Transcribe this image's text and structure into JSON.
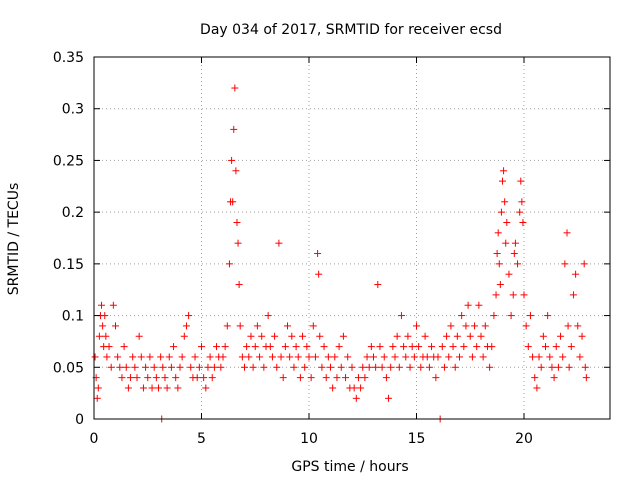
{
  "chart_data": {
    "type": "scatter",
    "title": "Day 034 of 2017, SRMTID for receiver ecsd",
    "xlabel": "GPS time / hours",
    "ylabel": "SRMTID / TECUs",
    "xlim": [
      0,
      24
    ],
    "ylim": [
      0,
      0.35
    ],
    "xticks": [
      0,
      5,
      10,
      15,
      20
    ],
    "xtick_labels": [
      "0",
      "5",
      "10",
      "15",
      "20"
    ],
    "yticks": [
      0,
      0.05,
      0.1,
      0.15,
      0.2,
      0.25,
      0.3,
      0.35
    ],
    "ytick_labels": [
      "0",
      "0.05",
      "0.1",
      "0.15",
      "0.2",
      "0.25",
      "0.3",
      "0.35"
    ],
    "grid": true,
    "marker": "+",
    "marker_color": "#ff0000",
    "series": [
      {
        "name": "SRMTID",
        "points": [
          [
            0.05,
            0.06
          ],
          [
            0.1,
            0.04
          ],
          [
            0.15,
            0.02
          ],
          [
            0.2,
            0.03
          ],
          [
            0.25,
            0.08
          ],
          [
            0.3,
            0.1
          ],
          [
            0.35,
            0.11
          ],
          [
            0.4,
            0.09
          ],
          [
            0.45,
            0.07
          ],
          [
            0.5,
            0.1
          ],
          [
            0.55,
            0.08
          ],
          [
            0.6,
            0.06
          ],
          [
            0.7,
            0.07
          ],
          [
            0.8,
            0.05
          ],
          [
            0.9,
            0.11
          ],
          [
            1.0,
            0.09
          ],
          [
            1.1,
            0.06
          ],
          [
            1.2,
            0.05
          ],
          [
            1.3,
            0.04
          ],
          [
            1.4,
            0.07
          ],
          [
            1.5,
            0.05
          ],
          [
            1.6,
            0.03
          ],
          [
            1.7,
            0.04
          ],
          [
            1.8,
            0.06
          ],
          [
            1.9,
            0.05
          ],
          [
            2.0,
            0.04
          ],
          [
            2.1,
            0.08
          ],
          [
            2.2,
            0.06
          ],
          [
            2.3,
            0.03
          ],
          [
            2.4,
            0.05
          ],
          [
            2.5,
            0.04
          ],
          [
            2.6,
            0.06
          ],
          [
            2.7,
            0.03
          ],
          [
            2.8,
            0.05
          ],
          [
            2.9,
            0.04
          ],
          [
            3.0,
            0.03
          ],
          [
            3.1,
            0.06
          ],
          [
            3.15,
            0.0
          ],
          [
            3.2,
            0.05
          ],
          [
            3.3,
            0.04
          ],
          [
            3.4,
            0.03
          ],
          [
            3.5,
            0.06
          ],
          [
            3.6,
            0.05
          ],
          [
            3.7,
            0.07
          ],
          [
            3.8,
            0.04
          ],
          [
            3.9,
            0.03
          ],
          [
            4.0,
            0.05
          ],
          [
            4.1,
            0.06
          ],
          [
            4.2,
            0.08
          ],
          [
            4.3,
            0.09
          ],
          [
            4.4,
            0.1
          ],
          [
            4.5,
            0.05
          ],
          [
            4.6,
            0.04
          ],
          [
            4.7,
            0.06
          ],
          [
            4.8,
            0.04
          ],
          [
            4.9,
            0.05
          ],
          [
            5.0,
            0.07
          ],
          [
            5.1,
            0.04
          ],
          [
            5.2,
            0.03
          ],
          [
            5.3,
            0.05
          ],
          [
            5.4,
            0.06
          ],
          [
            5.5,
            0.04
          ],
          [
            5.6,
            0.05
          ],
          [
            5.7,
            0.07
          ],
          [
            5.8,
            0.06
          ],
          [
            5.9,
            0.05
          ],
          [
            6.0,
            0.06
          ],
          [
            6.1,
            0.07
          ],
          [
            6.2,
            0.09
          ],
          [
            6.3,
            0.15
          ],
          [
            6.35,
            0.21
          ],
          [
            6.4,
            0.25
          ],
          [
            6.45,
            0.21
          ],
          [
            6.5,
            0.28
          ],
          [
            6.55,
            0.32
          ],
          [
            6.6,
            0.24
          ],
          [
            6.65,
            0.19
          ],
          [
            6.7,
            0.17
          ],
          [
            6.75,
            0.13
          ],
          [
            6.8,
            0.09
          ],
          [
            6.9,
            0.06
          ],
          [
            7.0,
            0.05
          ],
          [
            7.1,
            0.07
          ],
          [
            7.2,
            0.06
          ],
          [
            7.3,
            0.08
          ],
          [
            7.4,
            0.05
          ],
          [
            7.5,
            0.07
          ],
          [
            7.6,
            0.09
          ],
          [
            7.7,
            0.06
          ],
          [
            7.8,
            0.08
          ],
          [
            7.9,
            0.05
          ],
          [
            8.0,
            0.07
          ],
          [
            8.1,
            0.1
          ],
          [
            8.2,
            0.07
          ],
          [
            8.3,
            0.06
          ],
          [
            8.4,
            0.08
          ],
          [
            8.5,
            0.05
          ],
          [
            8.6,
            0.17
          ],
          [
            8.7,
            0.06
          ],
          [
            8.8,
            0.04
          ],
          [
            8.9,
            0.07
          ],
          [
            9.0,
            0.09
          ],
          [
            9.1,
            0.06
          ],
          [
            9.2,
            0.08
          ],
          [
            9.3,
            0.05
          ],
          [
            9.4,
            0.07
          ],
          [
            9.5,
            0.06
          ],
          [
            9.6,
            0.04
          ],
          [
            9.7,
            0.08
          ],
          [
            9.8,
            0.05
          ],
          [
            9.9,
            0.07
          ],
          [
            10.0,
            0.06
          ],
          [
            10.1,
            0.04
          ],
          [
            10.2,
            0.09
          ],
          [
            10.3,
            0.06
          ],
          [
            10.4,
            0.16
          ],
          [
            10.45,
            0.14
          ],
          [
            10.5,
            0.08
          ],
          [
            10.6,
            0.05
          ],
          [
            10.7,
            0.07
          ],
          [
            10.8,
            0.04
          ],
          [
            10.9,
            0.06
          ],
          [
            11.0,
            0.05
          ],
          [
            11.1,
            0.03
          ],
          [
            11.2,
            0.06
          ],
          [
            11.3,
            0.04
          ],
          [
            11.4,
            0.07
          ],
          [
            11.5,
            0.05
          ],
          [
            11.6,
            0.08
          ],
          [
            11.7,
            0.04
          ],
          [
            11.8,
            0.06
          ],
          [
            11.9,
            0.03
          ],
          [
            12.0,
            0.05
          ],
          [
            12.1,
            0.03
          ],
          [
            12.2,
            0.02
          ],
          [
            12.3,
            0.04
          ],
          [
            12.4,
            0.03
          ],
          [
            12.5,
            0.05
          ],
          [
            12.6,
            0.04
          ],
          [
            12.7,
            0.06
          ],
          [
            12.8,
            0.05
          ],
          [
            12.9,
            0.07
          ],
          [
            13.0,
            0.06
          ],
          [
            13.1,
            0.05
          ],
          [
            13.2,
            0.13
          ],
          [
            13.3,
            0.07
          ],
          [
            13.4,
            0.05
          ],
          [
            13.5,
            0.06
          ],
          [
            13.6,
            0.04
          ],
          [
            13.7,
            0.02
          ],
          [
            13.8,
            0.05
          ],
          [
            13.9,
            0.07
          ],
          [
            14.0,
            0.06
          ],
          [
            14.1,
            0.08
          ],
          [
            14.2,
            0.05
          ],
          [
            14.3,
            0.1
          ],
          [
            14.4,
            0.07
          ],
          [
            14.5,
            0.06
          ],
          [
            14.6,
            0.08
          ],
          [
            14.7,
            0.05
          ],
          [
            14.8,
            0.07
          ],
          [
            14.9,
            0.06
          ],
          [
            15.0,
            0.09
          ],
          [
            15.1,
            0.07
          ],
          [
            15.2,
            0.05
          ],
          [
            15.3,
            0.06
          ],
          [
            15.4,
            0.08
          ],
          [
            15.5,
            0.06
          ],
          [
            15.6,
            0.05
          ],
          [
            15.7,
            0.07
          ],
          [
            15.8,
            0.06
          ],
          [
            15.9,
            0.04
          ],
          [
            16.0,
            0.06
          ],
          [
            16.1,
            0.0
          ],
          [
            16.2,
            0.07
          ],
          [
            16.3,
            0.05
          ],
          [
            16.4,
            0.08
          ],
          [
            16.5,
            0.06
          ],
          [
            16.6,
            0.09
          ],
          [
            16.7,
            0.07
          ],
          [
            16.8,
            0.05
          ],
          [
            16.9,
            0.08
          ],
          [
            17.0,
            0.06
          ],
          [
            17.1,
            0.1
          ],
          [
            17.2,
            0.07
          ],
          [
            17.3,
            0.09
          ],
          [
            17.4,
            0.11
          ],
          [
            17.5,
            0.08
          ],
          [
            17.6,
            0.06
          ],
          [
            17.7,
            0.09
          ],
          [
            17.8,
            0.07
          ],
          [
            17.9,
            0.11
          ],
          [
            18.0,
            0.08
          ],
          [
            18.1,
            0.06
          ],
          [
            18.2,
            0.09
          ],
          [
            18.3,
            0.07
          ],
          [
            18.4,
            0.05
          ],
          [
            18.5,
            0.07
          ],
          [
            18.6,
            0.1
          ],
          [
            18.7,
            0.12
          ],
          [
            18.75,
            0.16
          ],
          [
            18.8,
            0.18
          ],
          [
            18.85,
            0.15
          ],
          [
            18.9,
            0.13
          ],
          [
            18.95,
            0.2
          ],
          [
            19.0,
            0.23
          ],
          [
            19.05,
            0.24
          ],
          [
            19.1,
            0.21
          ],
          [
            19.15,
            0.17
          ],
          [
            19.2,
            0.19
          ],
          [
            19.3,
            0.14
          ],
          [
            19.4,
            0.1
          ],
          [
            19.5,
            0.12
          ],
          [
            19.55,
            0.16
          ],
          [
            19.6,
            0.17
          ],
          [
            19.7,
            0.15
          ],
          [
            19.8,
            0.2
          ],
          [
            19.85,
            0.23
          ],
          [
            19.9,
            0.21
          ],
          [
            19.95,
            0.19
          ],
          [
            20.0,
            0.12
          ],
          [
            20.1,
            0.09
          ],
          [
            20.2,
            0.07
          ],
          [
            20.3,
            0.1
          ],
          [
            20.4,
            0.06
          ],
          [
            20.5,
            0.04
          ],
          [
            20.6,
            0.03
          ],
          [
            20.7,
            0.06
          ],
          [
            20.8,
            0.05
          ],
          [
            20.9,
            0.08
          ],
          [
            21.0,
            0.07
          ],
          [
            21.1,
            0.1
          ],
          [
            21.2,
            0.06
          ],
          [
            21.3,
            0.05
          ],
          [
            21.4,
            0.04
          ],
          [
            21.5,
            0.07
          ],
          [
            21.6,
            0.05
          ],
          [
            21.7,
            0.08
          ],
          [
            21.8,
            0.06
          ],
          [
            21.9,
            0.15
          ],
          [
            22.0,
            0.18
          ],
          [
            22.05,
            0.09
          ],
          [
            22.1,
            0.05
          ],
          [
            22.2,
            0.07
          ],
          [
            22.3,
            0.12
          ],
          [
            22.4,
            0.14
          ],
          [
            22.5,
            0.09
          ],
          [
            22.6,
            0.06
          ],
          [
            22.7,
            0.08
          ],
          [
            22.8,
            0.15
          ],
          [
            22.85,
            0.05
          ],
          [
            22.9,
            0.04
          ]
        ]
      }
    ]
  }
}
